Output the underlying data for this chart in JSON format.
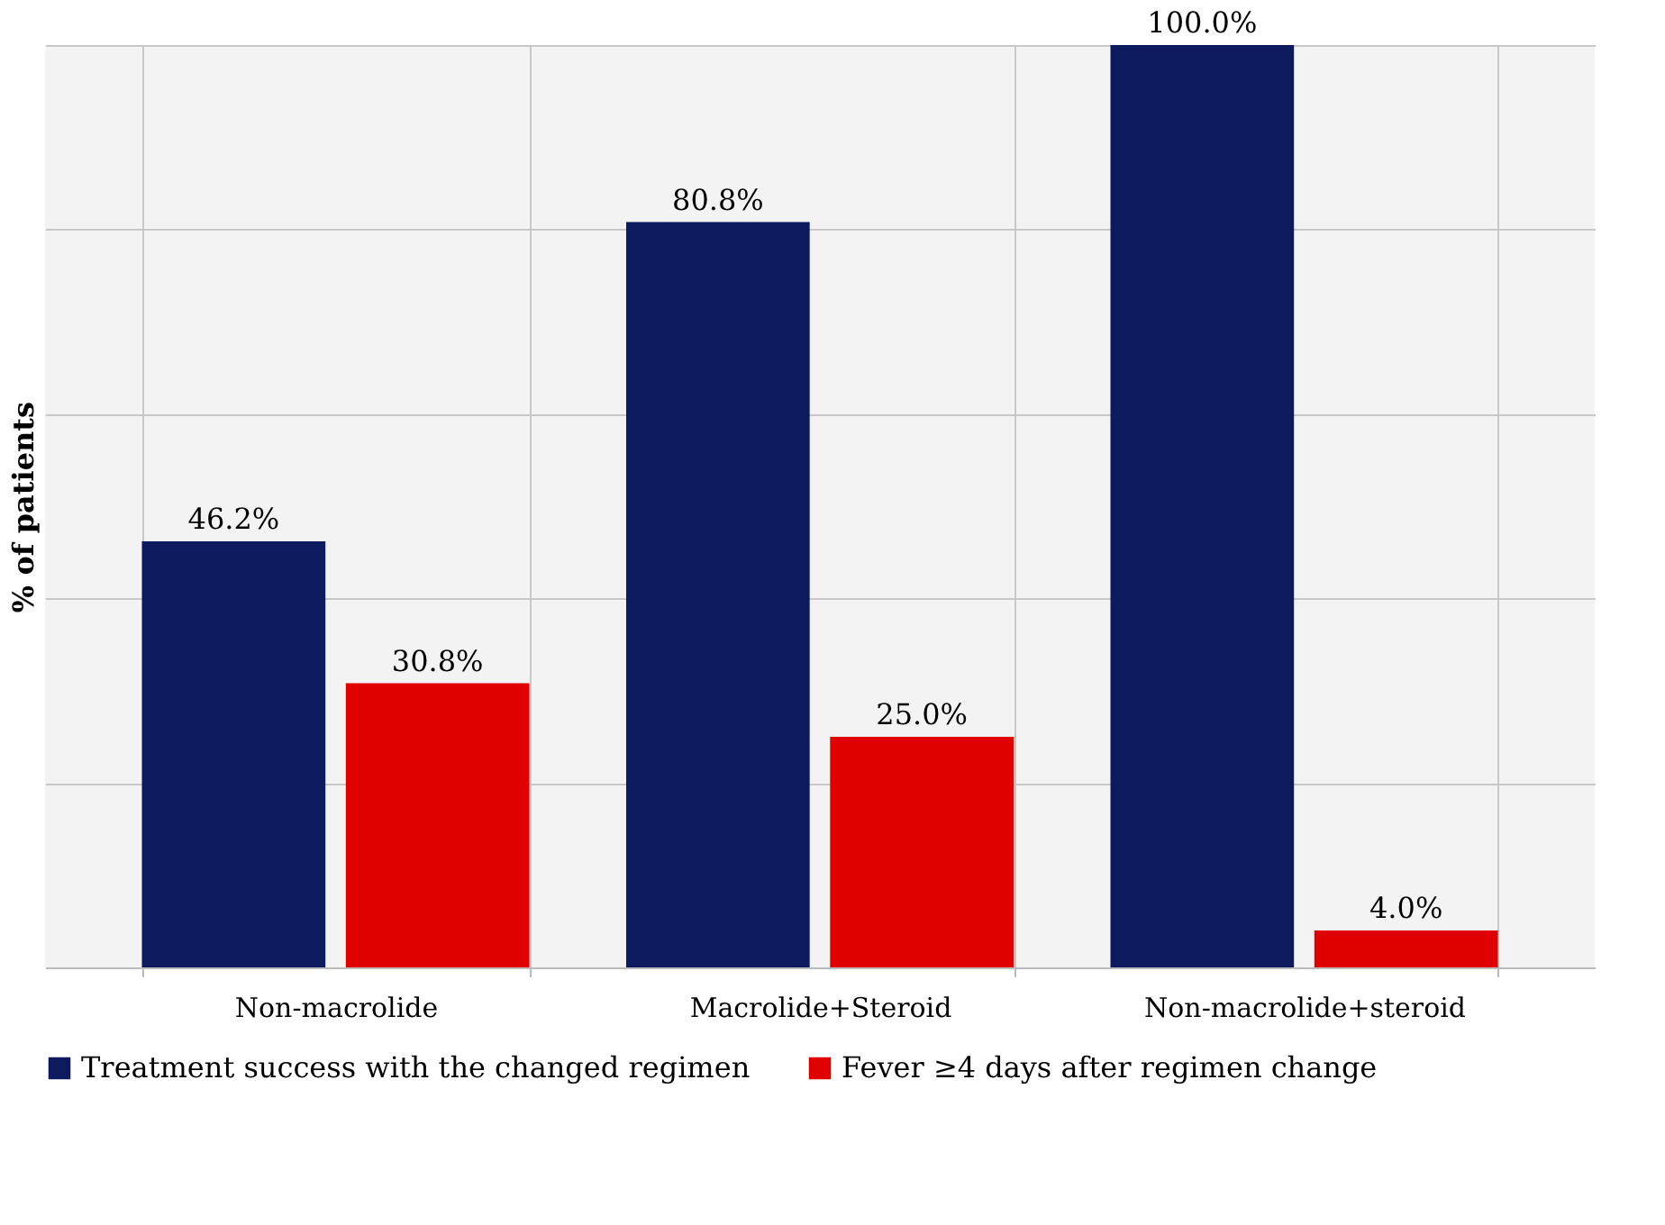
{
  "chart_data": {
    "type": "bar",
    "ylabel": "% of patients",
    "categories": [
      "Non-macrolide",
      "Macrolide+Steroid",
      "Non-macrolide+steroid"
    ],
    "series": [
      {
        "name": "Treatment success with the changed regimen",
        "color": "#0d1b5e",
        "values": [
          46.2,
          80.8,
          100.0
        ],
        "value_labels": [
          "46.2%",
          "80.8%",
          "100.0%"
        ]
      },
      {
        "name": "Fever ≥4 days after regimen change",
        "color": "#e00000",
        "values": [
          30.8,
          25.0,
          4.0
        ],
        "value_labels": [
          "30.8%",
          "25.0%",
          "4.0%"
        ]
      }
    ],
    "ylim": [
      0,
      100
    ],
    "yticks": [
      {
        "value": 0,
        "label": null
      },
      {
        "value": 20,
        "label": null
      },
      {
        "value": 40,
        "label": null
      },
      {
        "value": 60,
        "label": null
      },
      {
        "value": 80,
        "label": null
      },
      {
        "value": 100,
        "label": null
      }
    ],
    "tick_labels": "x",
    "grid": true,
    "legend": "bottom"
  }
}
